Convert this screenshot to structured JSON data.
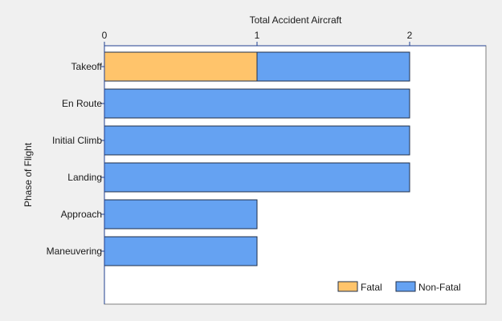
{
  "chart_data": {
    "type": "bar",
    "orientation": "horizontal",
    "stacked": true,
    "title": "",
    "xlabel": "Total Accident Aircraft",
    "ylabel": "Phase of Flight",
    "x_axis_position": "top",
    "xlim": [
      0,
      2.5
    ],
    "xticks": [
      "0",
      "1",
      "2"
    ],
    "xtick_values": [
      0,
      1,
      2
    ],
    "categories": [
      "Takeoff",
      "En Route",
      "Initial Climb",
      "Landing",
      "Approach",
      "Maneuvering"
    ],
    "series": [
      {
        "name": "Fatal",
        "color": "#ffc46b",
        "values": [
          1,
          0,
          0,
          0,
          0,
          0
        ]
      },
      {
        "name": "Non-Fatal",
        "color": "#65a2f2",
        "values": [
          1,
          2,
          2,
          2,
          1,
          1
        ]
      }
    ],
    "grid": false,
    "legend_position": "bottom-right"
  }
}
